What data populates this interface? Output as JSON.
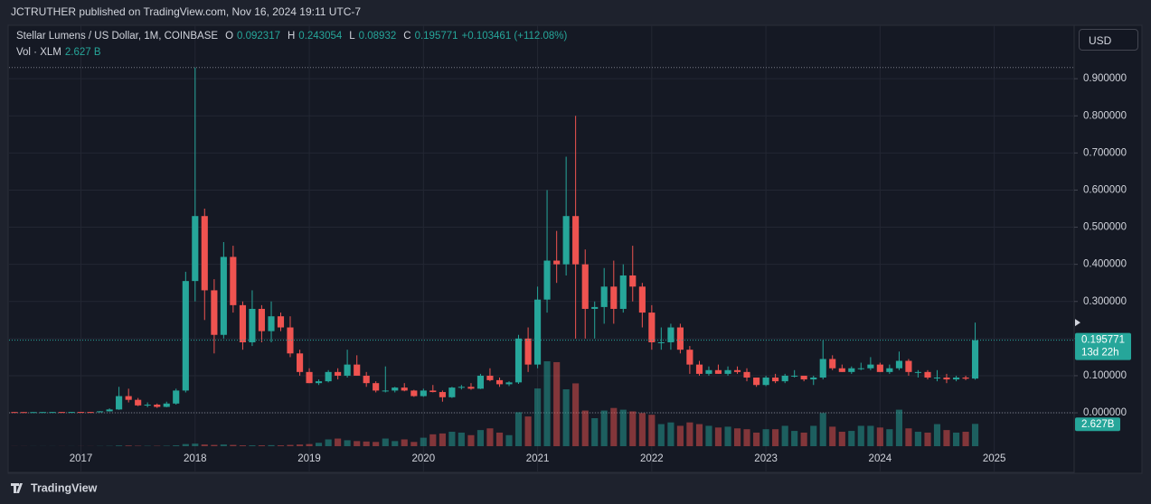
{
  "header": "JCTRUTHER published on TradingView.com, Nov 16, 2024 19:11 UTC-7",
  "brand": "TradingView",
  "chart_data": {
    "type": "candlestick",
    "title": "Stellar Lumens / US Dollar, 1M, COINBASE",
    "legend_labels": [
      "O",
      "H",
      "L",
      "C"
    ],
    "change": "+0.103461 (+112.08%)",
    "volume_title": "Vol · XLM",
    "last_volume_label": "2.627 B",
    "last_volume_badge": "2.627B",
    "currency": "USD",
    "countdown": "13d 22h",
    "up_color": "#26a69a",
    "down_color": "#ef5350",
    "grid": true,
    "xlim": [
      2016.37,
      2025.7
    ],
    "xticks": [
      2017,
      2018,
      2019,
      2020,
      2021,
      2022,
      2023,
      2024,
      2025
    ],
    "ylim": [
      -0.158,
      1.039
    ],
    "yticks": [
      {
        "value": 0,
        "label": "0.000000"
      },
      {
        "value": 0.1,
        "label": "0.100000"
      },
      {
        "value": 0.2,
        "label": "0.200000"
      },
      {
        "value": 0.3,
        "label": "0.300000"
      },
      {
        "value": 0.4,
        "label": "0.400000"
      },
      {
        "value": 0.5,
        "label": "0.500000"
      },
      {
        "value": 0.6,
        "label": "0.600000"
      },
      {
        "value": 0.7,
        "label": "0.700000"
      },
      {
        "value": 0.8,
        "label": "0.800000"
      },
      {
        "value": 0.9,
        "label": "0.900000"
      }
    ],
    "x": [
      2016.417,
      2016.5,
      2016.583,
      2016.667,
      2016.75,
      2016.833,
      2016.917,
      2017.0,
      2017.083,
      2017.167,
      2017.25,
      2017.333,
      2017.417,
      2017.5,
      2017.583,
      2017.667,
      2017.75,
      2017.833,
      2017.917,
      2018.0,
      2018.083,
      2018.167,
      2018.25,
      2018.333,
      2018.417,
      2018.5,
      2018.583,
      2018.667,
      2018.75,
      2018.833,
      2018.917,
      2019.0,
      2019.083,
      2019.167,
      2019.25,
      2019.333,
      2019.417,
      2019.5,
      2019.583,
      2019.667,
      2019.75,
      2019.833,
      2019.917,
      2020.0,
      2020.083,
      2020.167,
      2020.25,
      2020.333,
      2020.417,
      2020.5,
      2020.583,
      2020.667,
      2020.75,
      2020.833,
      2020.917,
      2021.0,
      2021.083,
      2021.167,
      2021.25,
      2021.333,
      2021.417,
      2021.5,
      2021.583,
      2021.667,
      2021.75,
      2021.833,
      2021.917,
      2022.0,
      2022.083,
      2022.167,
      2022.25,
      2022.333,
      2022.417,
      2022.5,
      2022.583,
      2022.667,
      2022.75,
      2022.833,
      2022.917,
      2023.0,
      2023.083,
      2023.167,
      2023.25,
      2023.333,
      2023.417,
      2023.5,
      2023.583,
      2023.667,
      2023.75,
      2023.833,
      2023.917,
      2024.0,
      2024.083,
      2024.167,
      2024.25,
      2024.333,
      2024.417,
      2024.5,
      2024.583,
      2024.667,
      2024.75,
      2024.833
    ],
    "open": [
      0.0021,
      0.002,
      0.0019,
      0.002,
      0.0021,
      0.0022,
      0.002,
      0.0023,
      0.0022,
      0.0021,
      0.004,
      0.009,
      0.045,
      0.035,
      0.02,
      0.022,
      0.016,
      0.025,
      0.06,
      0.355,
      0.53,
      0.33,
      0.21,
      0.42,
      0.29,
      0.19,
      0.28,
      0.22,
      0.26,
      0.23,
      0.16,
      0.11,
      0.08,
      0.085,
      0.11,
      0.1,
      0.13,
      0.1,
      0.08,
      0.06,
      0.06,
      0.068,
      0.06,
      0.045,
      0.06,
      0.056,
      0.042,
      0.068,
      0.07,
      0.065,
      0.1,
      0.088,
      0.077,
      0.082,
      0.2,
      0.13,
      0.305,
      0.41,
      0.4,
      0.53,
      0.4,
      0.28,
      0.285,
      0.34,
      0.28,
      0.37,
      0.34,
      0.27,
      0.19,
      0.19,
      0.23,
      0.17,
      0.13,
      0.105,
      0.115,
      0.105,
      0.115,
      0.11,
      0.095,
      0.075,
      0.095,
      0.085,
      0.1,
      0.1,
      0.09,
      0.095,
      0.145,
      0.12,
      0.11,
      0.12,
      0.12,
      0.13,
      0.11,
      0.12,
      0.14,
      0.11,
      0.11,
      0.095,
      0.095,
      0.09,
      0.095,
      0.092317
    ],
    "high": [
      0.0025,
      0.0023,
      0.0022,
      0.0023,
      0.0024,
      0.0024,
      0.0024,
      0.0026,
      0.0025,
      0.0045,
      0.012,
      0.07,
      0.065,
      0.04,
      0.028,
      0.025,
      0.03,
      0.065,
      0.38,
      0.93,
      0.55,
      0.36,
      0.46,
      0.45,
      0.3,
      0.33,
      0.29,
      0.3,
      0.27,
      0.26,
      0.17,
      0.12,
      0.09,
      0.115,
      0.12,
      0.17,
      0.155,
      0.11,
      0.085,
      0.125,
      0.07,
      0.08,
      0.062,
      0.065,
      0.075,
      0.06,
      0.07,
      0.075,
      0.08,
      0.105,
      0.12,
      0.095,
      0.085,
      0.21,
      0.23,
      0.34,
      0.6,
      0.49,
      0.69,
      0.8,
      0.44,
      0.3,
      0.39,
      0.41,
      0.4,
      0.45,
      0.35,
      0.29,
      0.23,
      0.24,
      0.24,
      0.18,
      0.14,
      0.125,
      0.13,
      0.125,
      0.125,
      0.12,
      0.095,
      0.1,
      0.105,
      0.105,
      0.115,
      0.1,
      0.1,
      0.195,
      0.155,
      0.13,
      0.125,
      0.135,
      0.15,
      0.135,
      0.13,
      0.165,
      0.145,
      0.115,
      0.115,
      0.115,
      0.105,
      0.1,
      0.1,
      0.243054
    ],
    "low": [
      0.0018,
      0.0017,
      0.0017,
      0.0018,
      0.0019,
      0.0019,
      0.0019,
      0.002,
      0.0019,
      0.002,
      0.0035,
      0.008,
      0.028,
      0.018,
      0.015,
      0.013,
      0.015,
      0.022,
      0.055,
      0.3,
      0.25,
      0.16,
      0.2,
      0.27,
      0.17,
      0.18,
      0.19,
      0.19,
      0.22,
      0.15,
      0.1,
      0.08,
      0.075,
      0.082,
      0.09,
      0.095,
      0.1,
      0.07,
      0.055,
      0.055,
      0.055,
      0.058,
      0.043,
      0.043,
      0.055,
      0.03,
      0.04,
      0.063,
      0.062,
      0.064,
      0.085,
      0.07,
      0.072,
      0.078,
      0.11,
      0.12,
      0.27,
      0.35,
      0.37,
      0.2,
      0.2,
      0.2,
      0.24,
      0.24,
      0.27,
      0.3,
      0.23,
      0.17,
      0.17,
      0.17,
      0.16,
      0.105,
      0.1,
      0.1,
      0.105,
      0.1,
      0.105,
      0.085,
      0.07,
      0.072,
      0.08,
      0.08,
      0.095,
      0.085,
      0.075,
      0.09,
      0.115,
      0.11,
      0.105,
      0.115,
      0.115,
      0.11,
      0.105,
      0.115,
      0.1,
      0.095,
      0.09,
      0.085,
      0.08,
      0.085,
      0.088,
      0.08932
    ],
    "close": [
      0.002,
      0.0019,
      0.002,
      0.0021,
      0.0022,
      0.002,
      0.0023,
      0.0022,
      0.0021,
      0.004,
      0.009,
      0.045,
      0.035,
      0.02,
      0.022,
      0.016,
      0.025,
      0.06,
      0.355,
      0.53,
      0.33,
      0.21,
      0.42,
      0.29,
      0.19,
      0.28,
      0.22,
      0.26,
      0.23,
      0.16,
      0.11,
      0.08,
      0.085,
      0.11,
      0.1,
      0.13,
      0.1,
      0.08,
      0.06,
      0.06,
      0.068,
      0.06,
      0.045,
      0.06,
      0.056,
      0.042,
      0.068,
      0.07,
      0.065,
      0.1,
      0.088,
      0.077,
      0.082,
      0.2,
      0.13,
      0.305,
      0.41,
      0.4,
      0.53,
      0.4,
      0.28,
      0.285,
      0.34,
      0.28,
      0.37,
      0.34,
      0.27,
      0.19,
      0.19,
      0.23,
      0.17,
      0.13,
      0.105,
      0.115,
      0.105,
      0.115,
      0.11,
      0.095,
      0.075,
      0.095,
      0.085,
      0.1,
      0.1,
      0.09,
      0.095,
      0.145,
      0.12,
      0.11,
      0.12,
      0.12,
      0.13,
      0.11,
      0.12,
      0.14,
      0.11,
      0.11,
      0.095,
      0.095,
      0.09,
      0.095,
      0.092,
      0.195771
    ],
    "volume": [
      0.01,
      0.01,
      0.01,
      0.01,
      0.01,
      0.01,
      0.01,
      0.01,
      0.01,
      0.02,
      0.03,
      0.08,
      0.08,
      0.05,
      0.04,
      0.04,
      0.05,
      0.1,
      0.25,
      0.3,
      0.2,
      0.15,
      0.2,
      0.15,
      0.1,
      0.1,
      0.1,
      0.12,
      0.1,
      0.15,
      0.2,
      0.25,
      0.4,
      0.8,
      0.9,
      0.7,
      0.6,
      0.55,
      0.5,
      0.9,
      0.6,
      0.8,
      0.5,
      1.0,
      1.4,
      1.5,
      1.7,
      1.6,
      1.3,
      1.9,
      2.1,
      1.6,
      1.3,
      4.0,
      3.5,
      6.8,
      10.0,
      9.9,
      6.7,
      7.4,
      4.2,
      3.3,
      4.2,
      4.5,
      4.3,
      4.1,
      3.9,
      3.7,
      2.6,
      2.8,
      2.4,
      2.8,
      2.6,
      2.4,
      2.2,
      2.3,
      2.1,
      2.0,
      1.6,
      2.0,
      2.0,
      2.4,
      1.8,
      1.6,
      2.4,
      3.9,
      2.3,
      1.7,
      1.8,
      2.4,
      2.4,
      2.2,
      2.0,
      4.3,
      2.1,
      1.7,
      1.6,
      2.6,
      1.9,
      1.6,
      1.7,
      2.627
    ]
  }
}
